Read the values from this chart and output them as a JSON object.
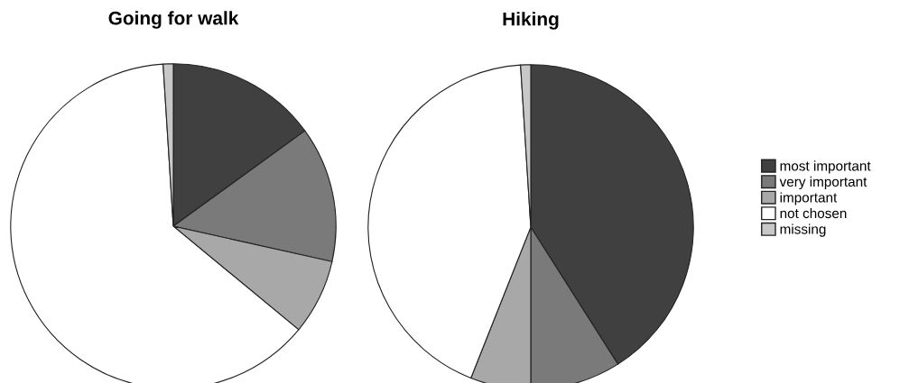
{
  "chart_data": [
    {
      "type": "pie",
      "title": "Going for walk",
      "categories": [
        "most important",
        "very important",
        "important",
        "not chosen",
        "missing"
      ],
      "values": [
        15,
        13.5,
        7.5,
        63,
        1
      ],
      "colors": [
        "#404040",
        "#7a7a7a",
        "#a8a8a8",
        "#ffffff",
        "#c8c8c8"
      ],
      "legend": "right"
    },
    {
      "type": "pie",
      "title": "Hiking",
      "categories": [
        null,
        null,
        null,
        null,
        null
      ],
      "values": [
        41,
        9,
        6,
        43,
        1
      ],
      "colors": [
        "#404040",
        "#7a7a7a",
        "#a8a8a8",
        "#ffffff",
        "#c8c8c8"
      ],
      "legend": false
    }
  ]
}
